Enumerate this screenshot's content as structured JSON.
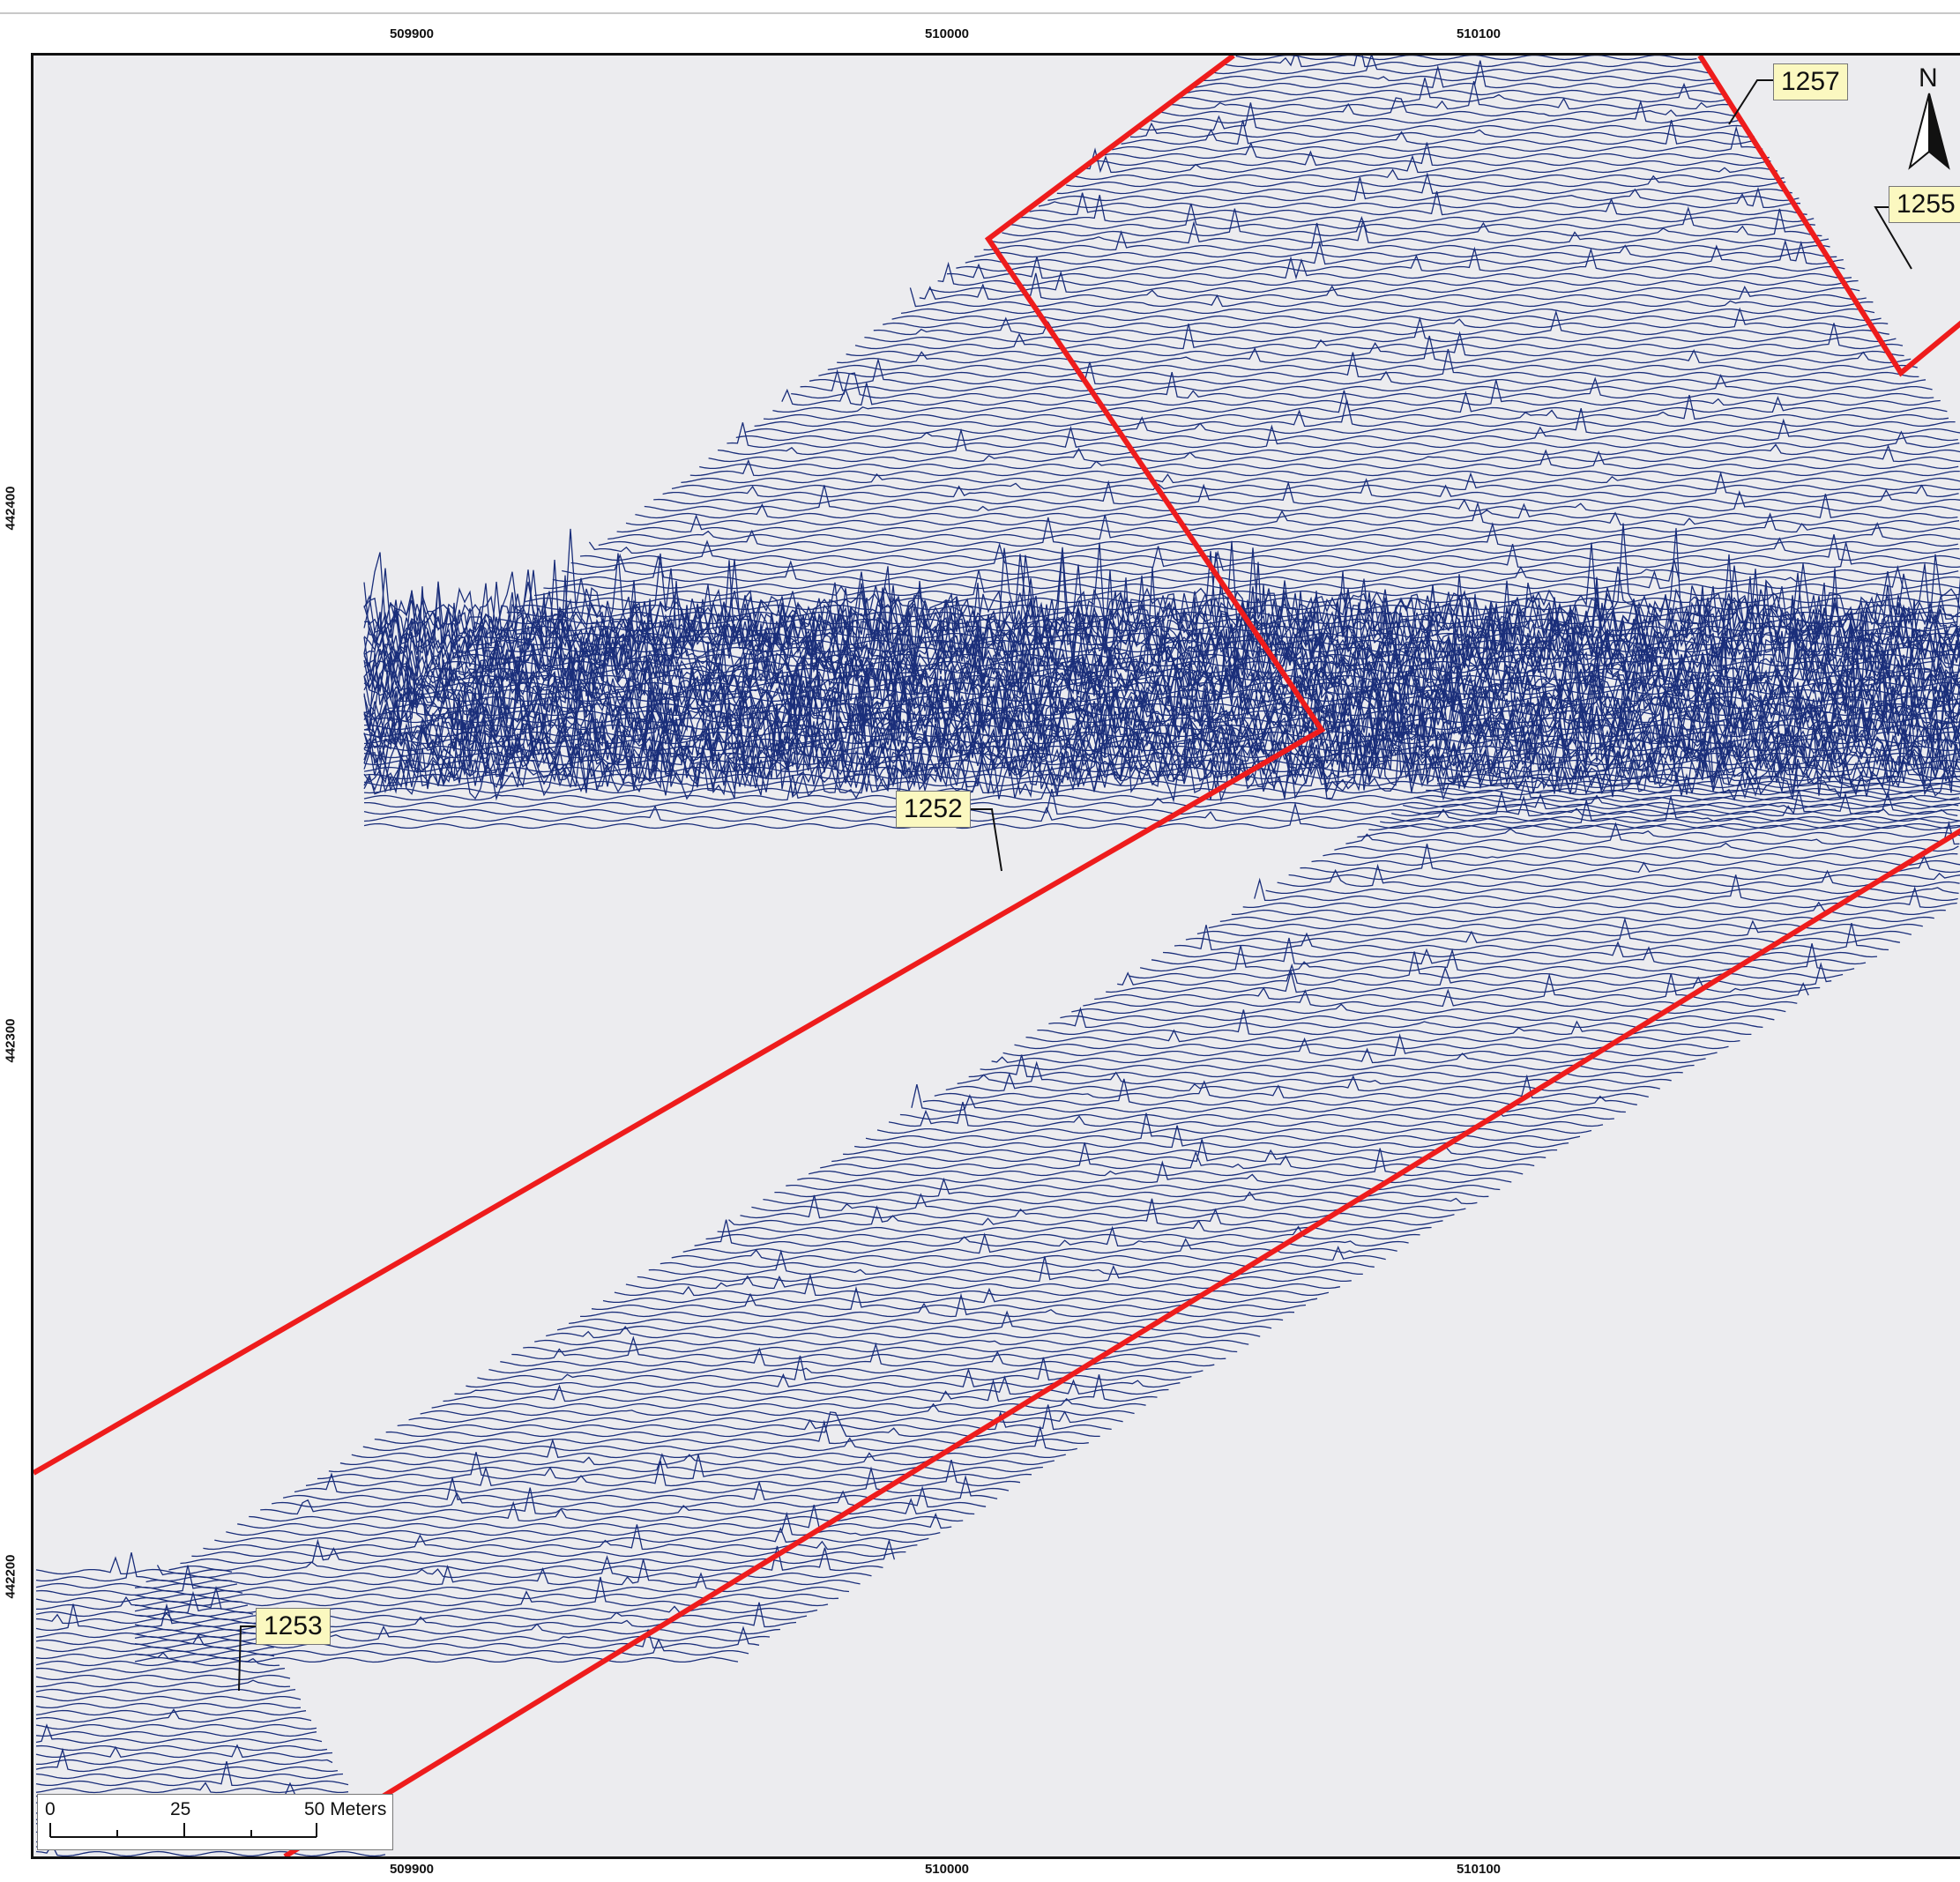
{
  "map": {
    "x_ticks": [
      "509900",
      "510000",
      "510100"
    ],
    "y_ticks": [
      "442400",
      "442300",
      "442200"
    ],
    "callouts": {
      "c1257": "1257",
      "c1255": "1255",
      "c1252": "1252",
      "c1253": "1253"
    },
    "north_label": "N",
    "scale": {
      "zero": "0",
      "mid": "25",
      "end": "50 Meters"
    },
    "colors": {
      "background": "#ececef",
      "profile_lines": "#1a2e7a",
      "boundary": "#ee1c1c",
      "callout_fill": "#fbf8c0"
    }
  }
}
